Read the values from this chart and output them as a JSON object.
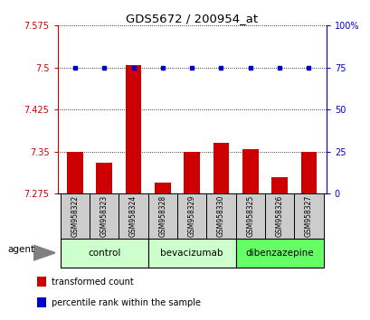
{
  "title": "GDS5672 / 200954_at",
  "samples": [
    "GSM958322",
    "GSM958323",
    "GSM958324",
    "GSM958328",
    "GSM958329",
    "GSM958330",
    "GSM958325",
    "GSM958326",
    "GSM958327"
  ],
  "bar_values": [
    7.35,
    7.33,
    7.505,
    7.295,
    7.35,
    7.365,
    7.355,
    7.305,
    7.35
  ],
  "dot_values": [
    75,
    75,
    75,
    75,
    75,
    75,
    75,
    75,
    75
  ],
  "bar_bottom": 7.275,
  "groups": [
    {
      "label": "control",
      "indices": [
        0,
        1,
        2
      ],
      "color": "#ccffcc"
    },
    {
      "label": "bevacizumab",
      "indices": [
        3,
        4,
        5
      ],
      "color": "#ccffcc"
    },
    {
      "label": "dibenzazepine",
      "indices": [
        6,
        7,
        8
      ],
      "color": "#66ff66"
    }
  ],
  "ylim_left": [
    7.275,
    7.575
  ],
  "ylim_right": [
    0,
    100
  ],
  "yticks_left": [
    7.275,
    7.35,
    7.425,
    7.5,
    7.575
  ],
  "yticks_right": [
    0,
    25,
    50,
    75,
    100
  ],
  "ytick_labels_left": [
    "7.275",
    "7.35",
    "7.425",
    "7.5",
    "7.575"
  ],
  "ytick_labels_right": [
    "0",
    "25",
    "50",
    "75",
    "100%"
  ],
  "bar_color": "#cc0000",
  "dot_color": "#0000cc",
  "grid_color": "#000000",
  "agent_label": "agent",
  "legend": [
    {
      "label": "transformed count",
      "color": "#cc0000"
    },
    {
      "label": "percentile rank within the sample",
      "color": "#0000cc"
    }
  ],
  "left_axis_color": "#cc0000",
  "right_axis_color": "#0000cc",
  "background_color": "#ffffff",
  "plot_bg_color": "#ffffff",
  "sample_box_color": "#cccccc"
}
